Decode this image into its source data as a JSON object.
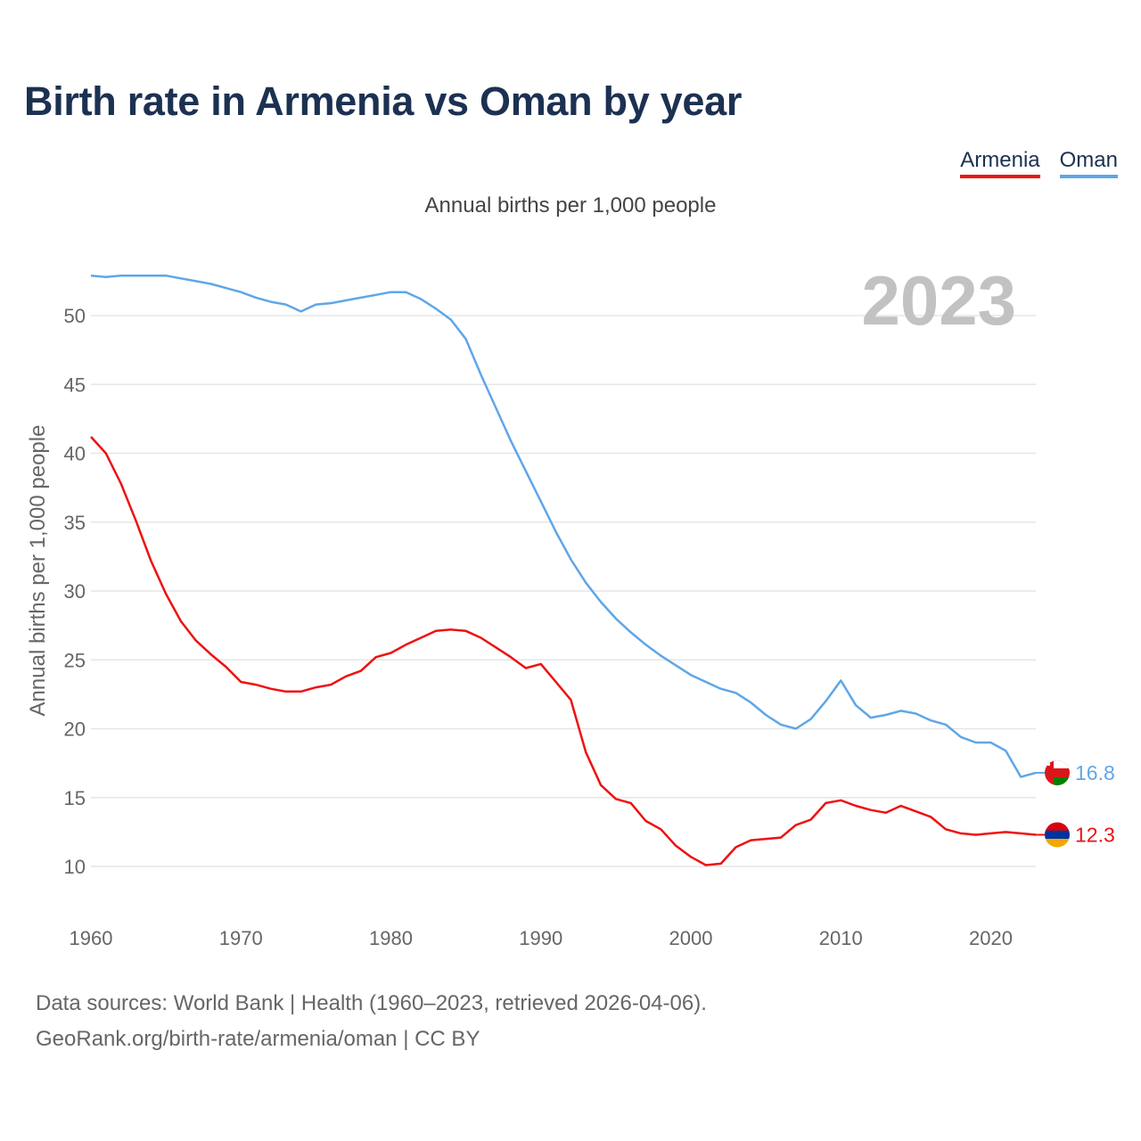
{
  "title": "Birth rate in Armenia vs Oman by year",
  "legend": [
    {
      "name": "Armenia",
      "color": "#ee1111"
    },
    {
      "name": "Oman",
      "color": "#5fa6e8"
    }
  ],
  "current_year": "2023",
  "footer": {
    "line1": "Data sources: World Bank | Health (1960–2023, retrieved 2026-04-06).",
    "line2": "GeoRank.org/birth-rate/armenia/oman | CC BY"
  },
  "chart_data": {
    "type": "line",
    "title": "Annual births per 1,000 people",
    "xlabel": "",
    "ylabel": "Annual births per 1,000 people",
    "xlim": [
      1960,
      2023
    ],
    "ylim": [
      10,
      52
    ],
    "x_ticks": [
      1960,
      1970,
      1980,
      1990,
      2000,
      2010,
      2020
    ],
    "y_ticks": [
      10,
      15,
      20,
      25,
      30,
      35,
      40,
      45,
      50
    ],
    "grid": true,
    "x": [
      1960,
      1961,
      1962,
      1963,
      1964,
      1965,
      1966,
      1967,
      1968,
      1969,
      1970,
      1971,
      1972,
      1973,
      1974,
      1975,
      1976,
      1977,
      1978,
      1979,
      1980,
      1981,
      1982,
      1983,
      1984,
      1985,
      1986,
      1987,
      1988,
      1989,
      1990,
      1991,
      1992,
      1993,
      1994,
      1995,
      1996,
      1997,
      1998,
      1999,
      2000,
      2001,
      2002,
      2003,
      2004,
      2005,
      2006,
      2007,
      2008,
      2009,
      2010,
      2011,
      2012,
      2013,
      2014,
      2015,
      2016,
      2017,
      2018,
      2019,
      2020,
      2021,
      2022,
      2023
    ],
    "series": [
      {
        "name": "Armenia",
        "color": "#ee1111",
        "end_label": "12.3",
        "values": [
          41.2,
          40.0,
          37.8,
          35.1,
          32.2,
          29.8,
          27.8,
          26.4,
          25.4,
          24.5,
          23.4,
          23.2,
          22.9,
          22.7,
          22.7,
          23.0,
          23.2,
          23.8,
          24.2,
          25.2,
          25.5,
          26.1,
          26.6,
          27.1,
          27.2,
          27.1,
          26.6,
          25.9,
          25.2,
          24.4,
          24.7,
          23.4,
          22.1,
          18.3,
          15.9,
          14.9,
          14.6,
          13.3,
          12.7,
          11.5,
          10.7,
          10.1,
          10.2,
          11.4,
          11.9,
          12.0,
          12.1,
          13.0,
          13.4,
          14.6,
          14.8,
          14.4,
          14.1,
          13.9,
          14.4,
          14.0,
          13.6,
          12.7,
          12.4,
          12.3,
          12.4,
          12.5,
          12.4,
          12.3
        ]
      },
      {
        "name": "Oman",
        "color": "#5fa6e8",
        "end_label": "16.8",
        "values": [
          52.9,
          52.8,
          52.9,
          52.9,
          52.9,
          52.9,
          52.7,
          52.5,
          52.3,
          52.0,
          51.7,
          51.3,
          51.0,
          50.8,
          50.3,
          50.8,
          50.9,
          51.1,
          51.3,
          51.5,
          51.7,
          51.7,
          51.2,
          50.5,
          49.7,
          48.3,
          45.7,
          43.3,
          40.9,
          38.7,
          36.5,
          34.3,
          32.3,
          30.6,
          29.2,
          28.0,
          27.0,
          26.1,
          25.3,
          24.6,
          23.9,
          23.4,
          22.9,
          22.6,
          21.9,
          21.0,
          20.3,
          20.0,
          20.7,
          22.0,
          23.5,
          21.7,
          20.8,
          21.0,
          21.3,
          21.1,
          20.6,
          20.3,
          19.4,
          19.0,
          19.0,
          18.4,
          16.5,
          16.8
        ]
      }
    ]
  }
}
